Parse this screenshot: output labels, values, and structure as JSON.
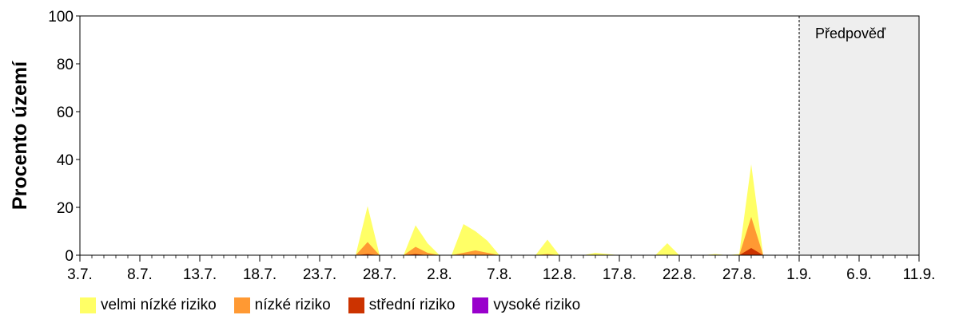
{
  "chart_data": {
    "type": "area",
    "stacked": true,
    "xlabel": "",
    "ylabel": "Procento území",
    "ylim": [
      0,
      100
    ],
    "yticks": [
      "0",
      "20",
      "40",
      "60",
      "80",
      "100"
    ],
    "xlim": [
      "3.7.",
      "11.9."
    ],
    "xticks": [
      "3.7.",
      "8.7.",
      "13.7.",
      "18.7.",
      "23.7.",
      "28.7.",
      "2.8.",
      "7.8.",
      "12.8.",
      "17.8.",
      "22.8.",
      "27.8.",
      "1.9.",
      "6.9.",
      "11.9."
    ],
    "forecast": {
      "label": "Předpověď",
      "from": "1.9.",
      "to": "11.9."
    },
    "x": [
      "24.7.",
      "25.7.",
      "26.7.",
      "27.7.",
      "28.7.",
      "29.7.",
      "30.7.",
      "31.7.",
      "1.8.",
      "2.8.",
      "3.8.",
      "4.8.",
      "5.8.",
      "6.8.",
      "7.8.",
      "8.8.",
      "9.8.",
      "10.8.",
      "11.8.",
      "12.8.",
      "13.8.",
      "14.8.",
      "15.8.",
      "16.8.",
      "17.8.",
      "18.8.",
      "19.8.",
      "20.8.",
      "21.8.",
      "22.8.",
      "23.8.",
      "24.8.",
      "25.8.",
      "26.8.",
      "27.8.",
      "28.8.",
      "29.8.",
      "30.8."
    ],
    "series": [
      {
        "name": "vysoké riziko",
        "color": "#9900cc",
        "values": [
          0,
          0,
          0,
          0,
          0,
          0,
          0,
          0,
          0,
          0,
          0,
          0,
          0,
          0,
          0,
          0,
          0,
          0,
          0,
          0,
          0,
          0,
          0,
          0,
          0,
          0,
          0,
          0,
          0,
          0,
          0,
          0,
          0,
          0,
          0,
          0,
          0,
          0
        ]
      },
      {
        "name": "střední riziko",
        "color": "#cc3300",
        "values": [
          0,
          0,
          0,
          0.5,
          0,
          0,
          0,
          0.5,
          0,
          0,
          0,
          0,
          0,
          0,
          0,
          0,
          0,
          0,
          0,
          0,
          0,
          0,
          0,
          0,
          0,
          0,
          0,
          0,
          0,
          0,
          0,
          0,
          0,
          0,
          0,
          3,
          0,
          0
        ]
      },
      {
        "name": "nízké riziko",
        "color": "#ff9933",
        "values": [
          0,
          0,
          0,
          5,
          0,
          0,
          0,
          3,
          1,
          0,
          0,
          1,
          2,
          1,
          0,
          0,
          0,
          0,
          0.5,
          0,
          0,
          0,
          0,
          0,
          0,
          0,
          0,
          0,
          0,
          0,
          0,
          0,
          0,
          0,
          0,
          13,
          0,
          0
        ]
      },
      {
        "name": "velmi nízké riziko",
        "color": "#ffff66",
        "values": [
          0,
          0,
          0,
          15,
          0,
          0,
          0,
          9,
          4,
          0,
          0,
          12,
          8,
          5,
          0,
          0,
          0,
          0,
          6,
          0,
          0,
          0,
          1,
          0.5,
          0,
          0,
          0,
          0,
          5,
          0,
          0,
          0,
          0.5,
          0,
          0.5,
          22,
          0,
          0
        ]
      }
    ],
    "legend": "bottom-left",
    "grid": false
  }
}
